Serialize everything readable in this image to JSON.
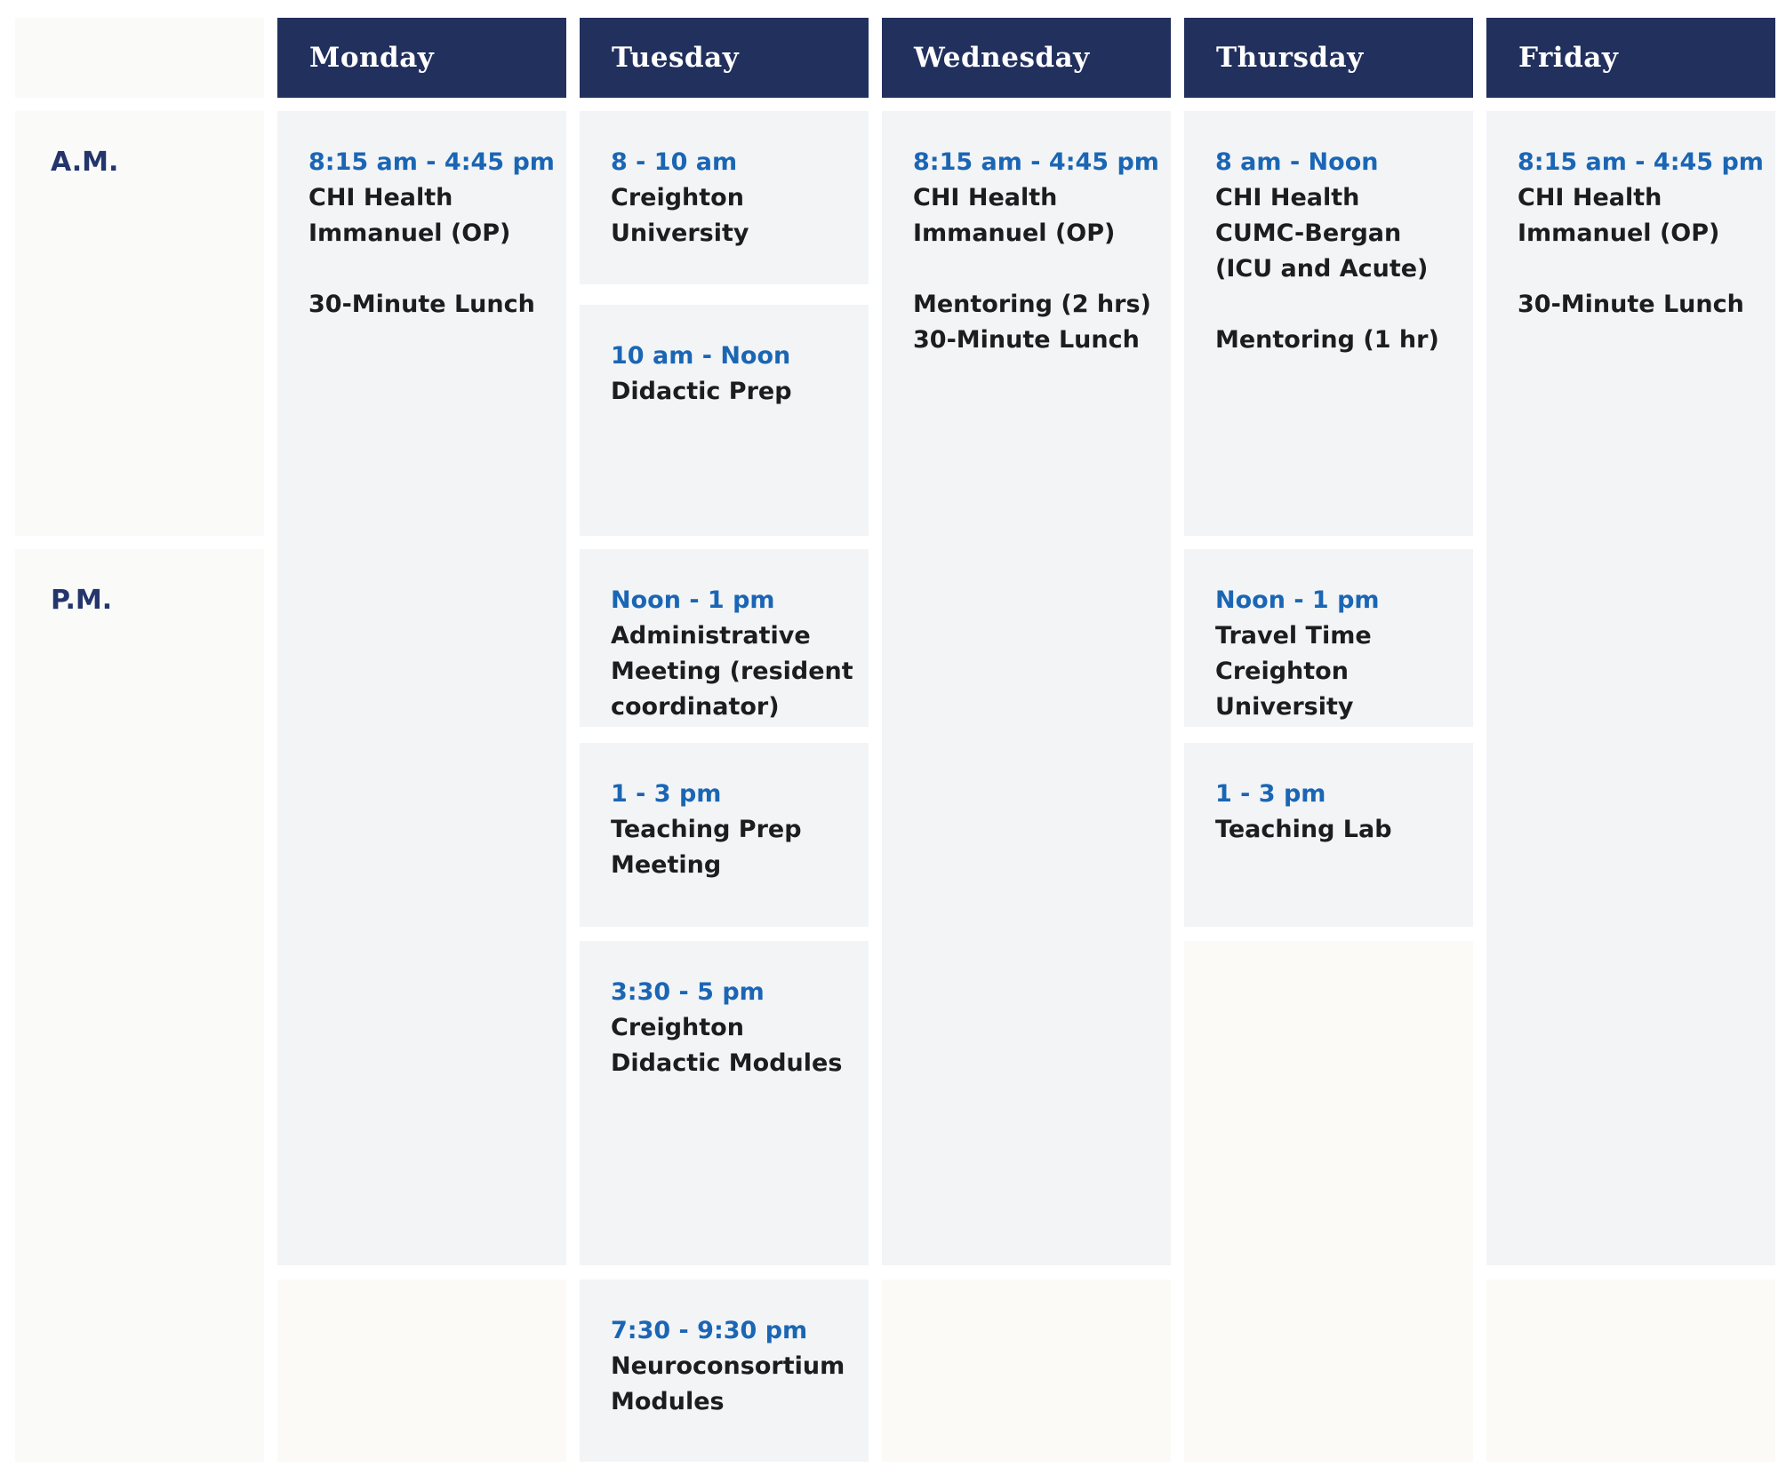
{
  "colors": {
    "navy": "#22305e",
    "blue": "#1b66b4",
    "ink": "#1d1d1f",
    "label-ink": "#24356b",
    "gray-cell": "#f2f4f6",
    "light-cell": "#fafaf9",
    "cream-cell": "#fbfaf7",
    "page-bg": "#ffffff"
  },
  "header": {
    "days": [
      "Monday",
      "Tuesday",
      "Wednesday",
      "Thursday",
      "Friday"
    ]
  },
  "row_labels": {
    "am": "A.M.",
    "pm": "P.M."
  },
  "schedule": {
    "monday": {
      "all_day": {
        "time": "8:15 am - 4:45 pm",
        "lines": [
          "CHI Health",
          "Immanuel (OP)",
          "",
          "30-Minute Lunch"
        ]
      }
    },
    "tuesday": {
      "early_am": {
        "time": "8 - 10 am",
        "lines": [
          "Creighton",
          "University"
        ]
      },
      "late_am": {
        "time": "10 am - Noon",
        "lines": [
          "Didactic Prep"
        ]
      },
      "noon": {
        "time": "Noon - 1 pm",
        "lines": [
          "Administrative",
          "Meeting (resident",
          "coordinator)"
        ]
      },
      "early_pm": {
        "time": "1 - 3 pm",
        "lines": [
          "Teaching Prep",
          "Meeting"
        ]
      },
      "late_pm": {
        "time": "3:30 - 5 pm",
        "lines": [
          "Creighton",
          "Didactic Modules"
        ]
      },
      "evening": {
        "time": "7:30 - 9:30 pm",
        "lines": [
          "Neuroconsortium",
          "Modules"
        ]
      }
    },
    "wednesday": {
      "all_day": {
        "time": "8:15 am - 4:45 pm",
        "lines": [
          "CHI Health",
          "Immanuel (OP)",
          "",
          "Mentoring (2 hrs)",
          "30-Minute Lunch"
        ]
      }
    },
    "thursday": {
      "morning": {
        "time": "8 am - Noon",
        "lines": [
          "CHI Health",
          "CUMC-Bergan",
          "(ICU and Acute)",
          "",
          "Mentoring (1 hr)"
        ]
      },
      "noon": {
        "time": "Noon - 1 pm",
        "lines": [
          "Travel Time",
          "Creighton",
          "University"
        ]
      },
      "early_pm": {
        "time": "1 - 3 pm",
        "lines": [
          "Teaching Lab"
        ]
      }
    },
    "friday": {
      "all_day": {
        "time": "8:15 am - 4:45 pm",
        "lines": [
          "CHI Health",
          "Immanuel (OP)",
          "",
          "30-Minute Lunch"
        ]
      }
    }
  }
}
